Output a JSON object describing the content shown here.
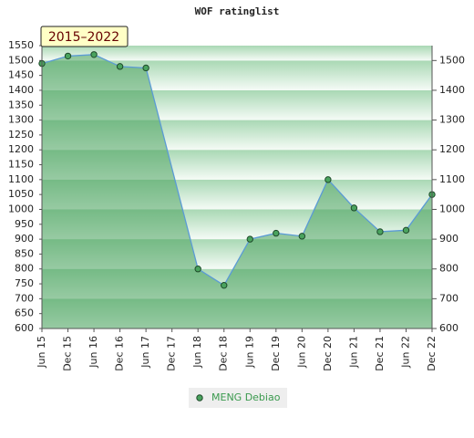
{
  "chart_data": {
    "type": "area",
    "title": "WOF ratinglist",
    "annotation": "2015–2022",
    "x": [
      0,
      6,
      12,
      18,
      24,
      36,
      42,
      48,
      54,
      60,
      66,
      72,
      78,
      84,
      90
    ],
    "xlim": [
      0,
      90
    ],
    "xticks": [
      {
        "value": 0,
        "label": "Jun 15"
      },
      {
        "value": 6,
        "label": "Dec 15"
      },
      {
        "value": 12,
        "label": "Jun 16"
      },
      {
        "value": 18,
        "label": "Dec 16"
      },
      {
        "value": 24,
        "label": "Jun 17"
      },
      {
        "value": 30,
        "label": "Dec 17"
      },
      {
        "value": 36,
        "label": "Jun 18"
      },
      {
        "value": 42,
        "label": "Dec 18"
      },
      {
        "value": 48,
        "label": "Jun 19"
      },
      {
        "value": 54,
        "label": "Dec 19"
      },
      {
        "value": 60,
        "label": "Jun 20"
      },
      {
        "value": 66,
        "label": "Dec 20"
      },
      {
        "value": 72,
        "label": "Jun 21"
      },
      {
        "value": 78,
        "label": "Dec 21"
      },
      {
        "value": 84,
        "label": "Jun 22"
      },
      {
        "value": 90,
        "label": "Dec 22"
      }
    ],
    "series": [
      {
        "name": "MENG Debiao",
        "color": "#4aa35e",
        "line_color": "#5b9bd5",
        "values": [
          1490,
          1515,
          1520,
          1480,
          1475,
          800,
          745,
          900,
          920,
          910,
          1100,
          1005,
          925,
          930,
          1050
        ]
      }
    ],
    "ylim": [
      600,
      1550
    ],
    "yticks": [
      600,
      650,
      700,
      750,
      800,
      850,
      900,
      950,
      1000,
      1050,
      1100,
      1150,
      1200,
      1250,
      1300,
      1350,
      1400,
      1450,
      1500,
      1550
    ],
    "y2lim": [
      600,
      1550
    ],
    "y2ticks": [
      600,
      700,
      800,
      900,
      1000,
      1100,
      1200,
      1300,
      1400,
      1500
    ],
    "legend": "bottom"
  }
}
